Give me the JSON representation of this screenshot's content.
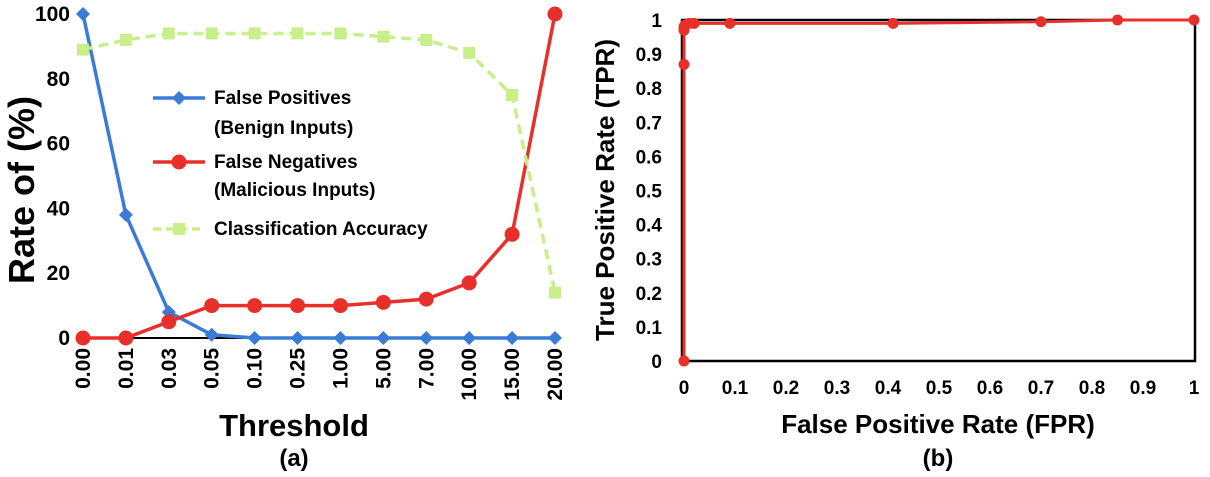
{
  "chart_data": [
    {
      "type": "line",
      "panel_label": "(a)",
      "xlabel": "Threshold",
      "ylabel": "Rate of (%)",
      "categories": [
        "0.00",
        "0.01",
        "0.03",
        "0.05",
        "0.10",
        "0.25",
        "1.00",
        "5.00",
        "7.00",
        "10.00",
        "15.00",
        "20.00"
      ],
      "y_ticks": [
        "0",
        "20",
        "40",
        "60",
        "80",
        "100"
      ],
      "ylim": [
        0,
        100
      ],
      "legend_position": "center",
      "series": [
        {
          "name": "False Positives",
          "name_line2": "(Benign Inputs)",
          "color": "#3a7bd5",
          "marker": "diamond",
          "dashed": false,
          "values": [
            100,
            38,
            8,
            1,
            0,
            0,
            0,
            0,
            0,
            0,
            0,
            0
          ]
        },
        {
          "name": "False Negatives",
          "name_line2": "(Malicious Inputs)",
          "color": "#e8302a",
          "marker": "circle",
          "dashed": false,
          "values": [
            0,
            0,
            5,
            10,
            10,
            10,
            10,
            11,
            12,
            17,
            32,
            100
          ]
        },
        {
          "name": "Classification Accuracy",
          "name_line2": "",
          "color": "#c9ef8a",
          "marker": "square",
          "dashed": true,
          "values": [
            89,
            92,
            94,
            94,
            94,
            94,
            94,
            93,
            92,
            88,
            75,
            14
          ]
        }
      ]
    },
    {
      "type": "line",
      "panel_label": "(b)",
      "xlabel": "False Positive Rate (FPR)",
      "ylabel": "True Positive Rate (TPR)",
      "x_ticks": [
        "0",
        "0.1",
        "0.2",
        "0.3",
        "0.4",
        "0.5",
        "0.6",
        "0.7",
        "0.8",
        "0.9",
        "1"
      ],
      "y_ticks": [
        "0",
        "0.1",
        "0.2",
        "0.3",
        "0.4",
        "0.5",
        "0.6",
        "0.7",
        "0.8",
        "0.9",
        "1"
      ],
      "xlim": [
        0,
        1
      ],
      "ylim": [
        0,
        1
      ],
      "series": [
        {
          "color": "#e8302a",
          "marker": "circle",
          "x": [
            0,
            0,
            0,
            0,
            0.002,
            0.01,
            0.02,
            0.09,
            0.41,
            0.7,
            0.85,
            1.0
          ],
          "y": [
            0,
            0.87,
            0.97,
            0.98,
            0.985,
            0.99,
            0.99,
            0.99,
            0.99,
            0.995,
            1.0,
            1.0
          ]
        }
      ]
    }
  ]
}
